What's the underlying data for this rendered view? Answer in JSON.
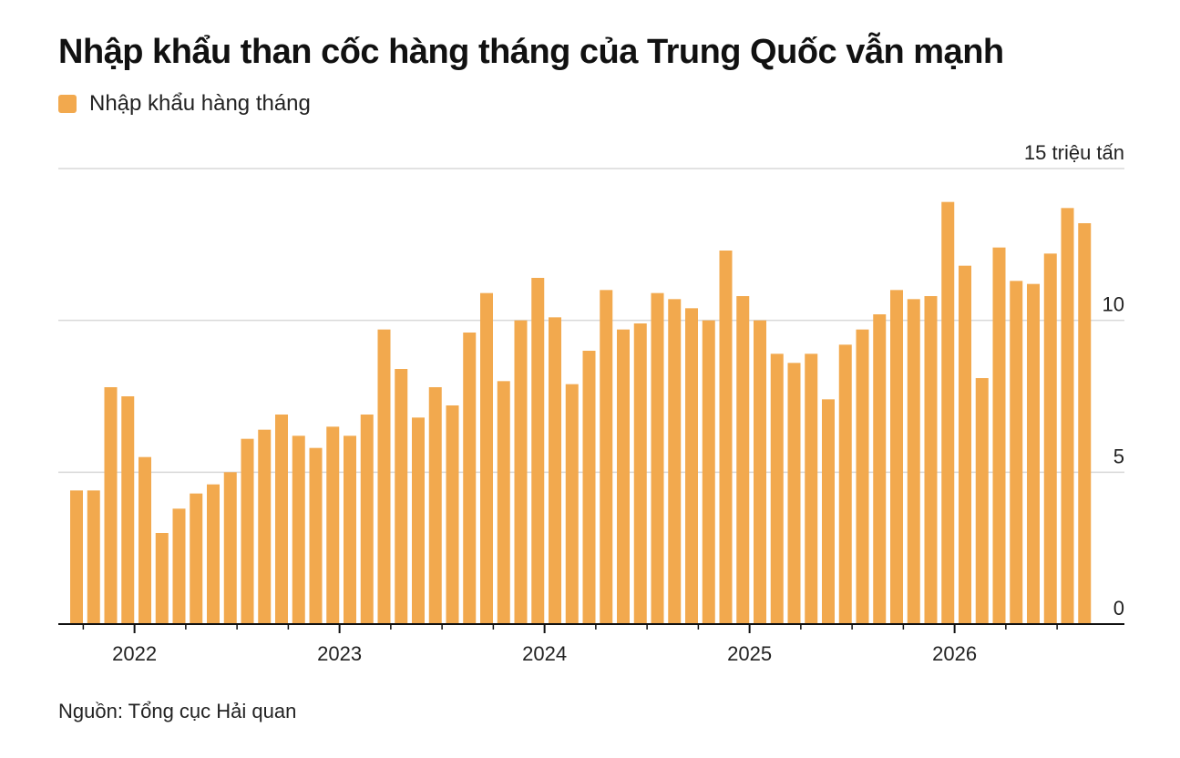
{
  "title": "Nhập khẩu than cốc hàng tháng của Trung Quốc vẫn mạnh",
  "legend": {
    "label": "Nhập khẩu hàng tháng",
    "color": "#F2A94E"
  },
  "source": "Nguồn: Tổng cục Hải quan",
  "colors": {
    "bar": "#F2A94E",
    "grid": "#d9d9d9",
    "axis": "#111111",
    "text": "#222222"
  },
  "chart_data": {
    "type": "bar",
    "title": "Nhập khẩu than cốc hàng tháng của Trung Quốc vẫn mạnh",
    "ylabel": "",
    "y_unit_label": "15 triệu tấn",
    "ylim": [
      0,
      15
    ],
    "yticks": [
      0,
      5,
      10,
      15
    ],
    "ytick_labels": [
      "0",
      "5",
      "10",
      "15 triệu tấn"
    ],
    "year_labels": [
      "2022",
      "2023",
      "2024",
      "2025",
      "2026"
    ],
    "grid": true,
    "legend_position": "top-left",
    "series": [
      {
        "name": "Nhập khẩu hàng tháng",
        "values": [
          4.4,
          4.4,
          7.8,
          7.5,
          5.5,
          3.0,
          3.8,
          4.3,
          4.6,
          5.0,
          6.1,
          6.4,
          6.9,
          6.2,
          5.8,
          6.5,
          6.2,
          6.9,
          9.7,
          8.4,
          6.8,
          7.8,
          7.2,
          9.6,
          10.9,
          8.0,
          10.0,
          11.4,
          10.1,
          7.9,
          9.0,
          11.0,
          9.7,
          9.9,
          10.9,
          10.7,
          10.4,
          10.0,
          12.3,
          10.8,
          10.0,
          8.9,
          8.6,
          8.9,
          7.4,
          9.2,
          9.7,
          10.2,
          11.0,
          10.7,
          10.8,
          13.9,
          11.8,
          8.1,
          12.4,
          11.3,
          11.2,
          12.2,
          13.7,
          13.2
        ]
      }
    ]
  }
}
